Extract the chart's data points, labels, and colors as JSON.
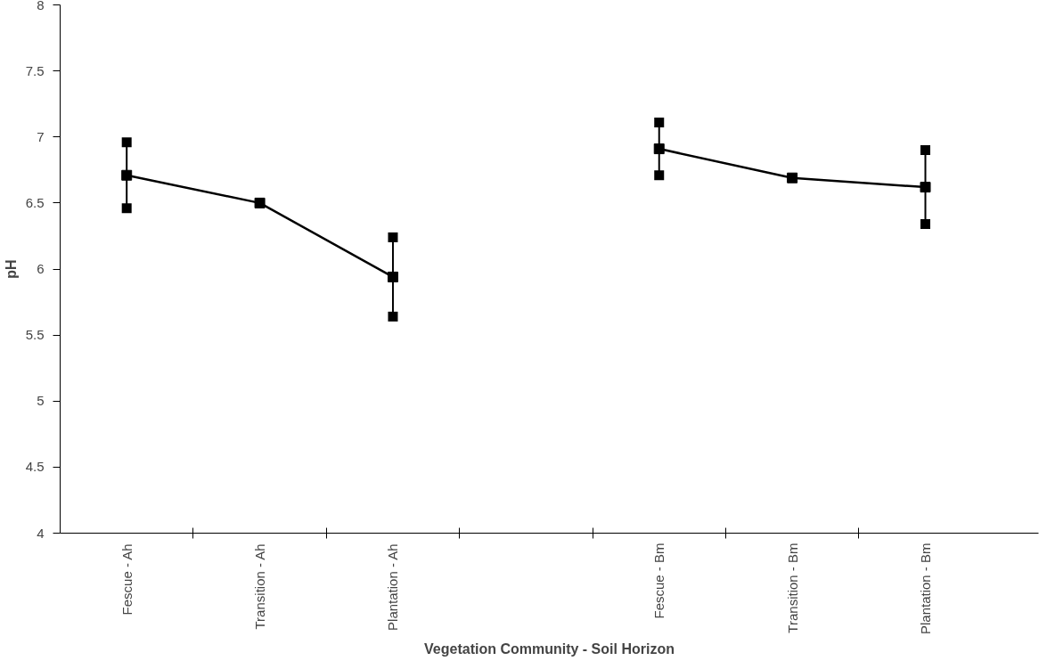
{
  "chart_data": {
    "type": "line",
    "xlabel": "Vegetation Community - Soil Horizon",
    "ylabel": "pH",
    "categories": [
      "Fescue - Ah",
      "Transition - Ah",
      "Plantation - Ah",
      null,
      "Fescue - Bm",
      "Transition - Bm",
      "Plantation - Bm"
    ],
    "series": [
      {
        "color": "#000000",
        "values": [
          6.71,
          6.5,
          5.94,
          null,
          6.91,
          6.69,
          6.62
        ],
        "errors": [
          0.25,
          null,
          0.3,
          null,
          0.2,
          null,
          0.28
        ]
      }
    ],
    "ylim": [
      4,
      8
    ],
    "yticks": [
      4,
      4.5,
      5,
      5.5,
      6,
      6.5,
      7,
      7.5,
      8
    ],
    "grid": false,
    "marker": "square",
    "line_style": "solid"
  }
}
